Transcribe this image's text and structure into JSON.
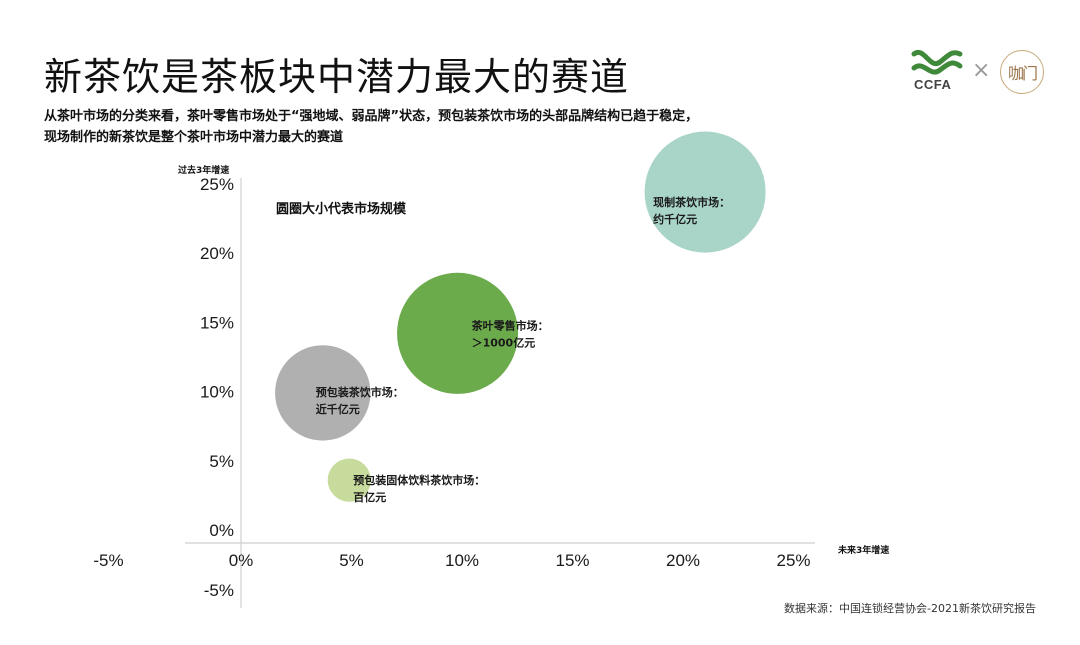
{
  "page": {
    "title": "新茶饮是茶板块中潜力最大的赛道",
    "subtitle_line1": "从茶叶市场的分类来看，茶叶零售市场处于“强地域、弱品牌”状态，预包装茶饮市场的头部品牌结构已趋于稳定，",
    "subtitle_line2": "现场制作的新茶饮是整个茶叶市场中潜力最大的赛道",
    "logo_left": "CCFA",
    "logo_separator": "×",
    "logo_right": "咖门",
    "source": "数据来源：中国连锁经营协会-2021新茶饮研究报告"
  },
  "chart_data": {
    "type": "scatter",
    "title": "",
    "xlabel": "未来3年增速",
    "ylabel": "过去3年增速",
    "size_note": "圆圈大小代表市场规模",
    "xlim": [
      -5,
      27.5
    ],
    "ylim": [
      -5,
      27.5
    ],
    "x_ticks": [
      "-5%",
      "0%",
      "5%",
      "10%",
      "15%",
      "20%",
      "25%"
    ],
    "x_tick_values": [
      -5,
      0,
      5,
      10,
      15,
      20,
      25
    ],
    "y_ticks": [
      "-5%",
      "0%",
      "5%",
      "10%",
      "15%",
      "20%",
      "25%"
    ],
    "y_tick_values": [
      -5,
      0,
      5,
      10,
      15,
      20,
      25
    ],
    "grid": false,
    "points": [
      {
        "name": "现制茶饮市场：",
        "size_label": "约千亿元",
        "x": 21,
        "y": 24.4,
        "size": 1000,
        "color": "#a9d5c9"
      },
      {
        "name": "茶叶零售市场：",
        "size_label": "＞1000亿元",
        "x": 9.8,
        "y": 14.2,
        "size": 1000,
        "color": "#6cab4c"
      },
      {
        "name": "预包装茶饮市场：",
        "size_label": "近千亿元",
        "x": 3.7,
        "y": 9.9,
        "size": 600,
        "color": "#b0b0b0"
      },
      {
        "name": "预包装固体饮料茶饮市场：",
        "size_label": "百亿元",
        "x": 4.9,
        "y": 3.6,
        "size": 100,
        "color": "#c7db9c"
      }
    ]
  }
}
